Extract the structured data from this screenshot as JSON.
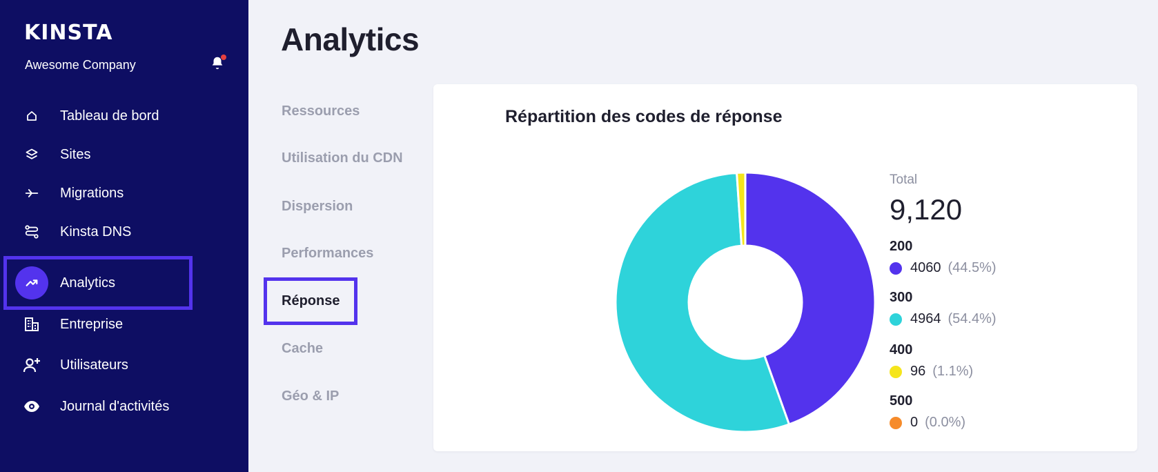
{
  "app": {
    "logo": "KINSTA",
    "company": "Awesome Company"
  },
  "sidebar": {
    "items": [
      {
        "label": "Tableau de bord",
        "icon": "home-icon"
      },
      {
        "label": "Sites",
        "icon": "layers-icon"
      },
      {
        "label": "Migrations",
        "icon": "migrations-icon"
      },
      {
        "label": "Kinsta DNS",
        "icon": "dns-icon"
      },
      {
        "label": "Analytics",
        "icon": "analytics-icon",
        "active": true
      },
      {
        "label": "Entreprise",
        "icon": "building-icon"
      },
      {
        "label": "Utilisateurs",
        "icon": "add-user-icon"
      },
      {
        "label": "Journal d'activités",
        "icon": "eye-icon"
      }
    ]
  },
  "page": {
    "title": "Analytics"
  },
  "subnav": {
    "items": [
      "Ressources",
      "Utilisation du CDN",
      "Dispersion",
      "Performances",
      "Réponse",
      "Cache",
      "Géo & IP"
    ],
    "active": "Réponse"
  },
  "card": {
    "title": "Répartition des codes de réponse",
    "total_label": "Total",
    "total_value": "9,120"
  },
  "colors": {
    "sidebar_bg": "#0e0e63",
    "accent": "#5333ed",
    "code_200": "#5333ed",
    "code_300": "#2ed3da",
    "code_400": "#f5e51c",
    "code_500": "#f68b2a"
  },
  "chart_data": {
    "type": "pie",
    "title": "Répartition des codes de réponse",
    "total": 9120,
    "slices": [
      {
        "name": "200",
        "value": 4060,
        "percent_label": "(44.5%)",
        "color": "#5333ed"
      },
      {
        "name": "300",
        "value": 4964,
        "percent_label": "(54.4%)",
        "color": "#2ed3da"
      },
      {
        "name": "400",
        "value": 96,
        "percent_label": "(1.1%)",
        "color": "#f5e51c"
      },
      {
        "name": "500",
        "value": 0,
        "percent_label": "(0.0%)",
        "color": "#f68b2a"
      }
    ],
    "legend_placement": "right"
  }
}
